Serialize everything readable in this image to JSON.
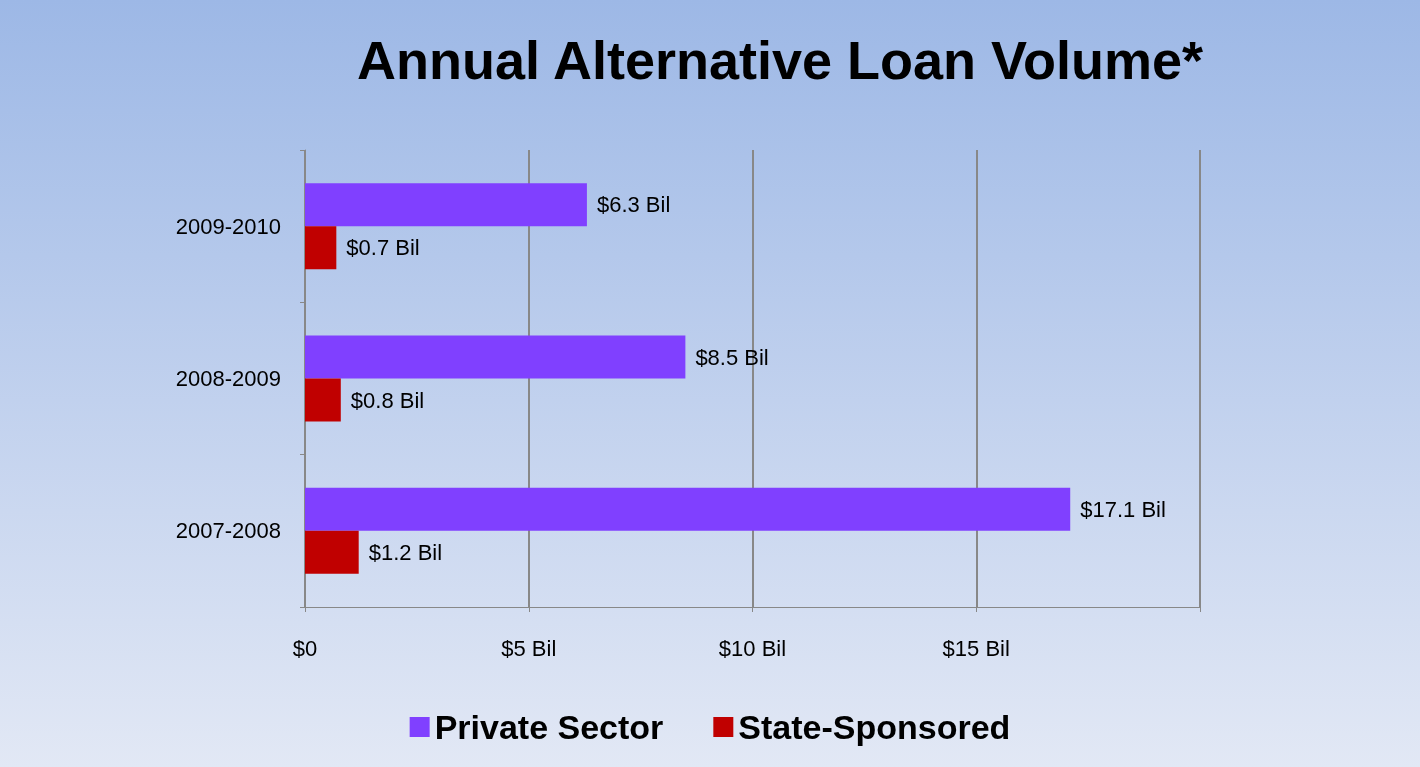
{
  "chart_data": {
    "type": "bar",
    "orientation": "horizontal",
    "title": "Annual Alternative Loan Volume*",
    "categories": [
      "2009-2010",
      "2008-2009",
      "2007-2008"
    ],
    "series": [
      {
        "name": "Private Sector",
        "color": "#8040ff",
        "values": [
          6.3,
          8.5,
          17.1
        ],
        "value_labels": [
          "$6.3 Bil",
          "$8.5 Bil",
          "$17.1 Bil"
        ]
      },
      {
        "name": "State-Sponsored",
        "color": "#c00000",
        "values": [
          0.7,
          0.8,
          1.2
        ],
        "value_labels": [
          "$0.7 Bil",
          "$0.8 Bil",
          "$1.2 Bil"
        ]
      }
    ],
    "xlim": [
      0,
      20
    ],
    "xticks": [
      {
        "value": 0,
        "label": "$0"
      },
      {
        "value": 5,
        "label": "$5 Bil"
      },
      {
        "value": 10,
        "label": "$10 Bil"
      },
      {
        "value": 15,
        "label": "$15 Bil"
      },
      {
        "value": 20,
        "label": null
      }
    ],
    "grid": "x",
    "legend": "bottom"
  }
}
